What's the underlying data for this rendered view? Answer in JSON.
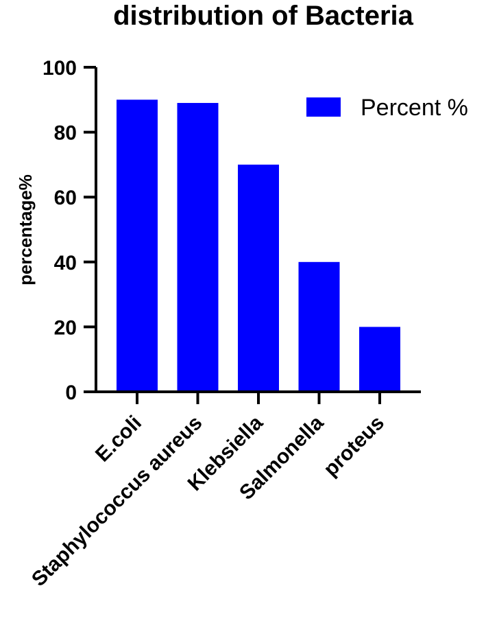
{
  "chart_data": {
    "type": "bar",
    "title": "distribution of Bacteria",
    "xlabel": "",
    "ylabel": "percentage%",
    "ylim": [
      0,
      100
    ],
    "yticks": [
      0,
      20,
      40,
      60,
      80,
      100
    ],
    "categories": [
      "E.coli",
      "Staphylococcus aureus",
      "Klebsiella",
      "Salmonella",
      "proteus"
    ],
    "series": [
      {
        "name": "Percent %",
        "values": [
          90,
          89,
          70,
          40,
          20
        ],
        "color": "#0000ff"
      }
    ],
    "grid": false,
    "legend": "top-right"
  }
}
